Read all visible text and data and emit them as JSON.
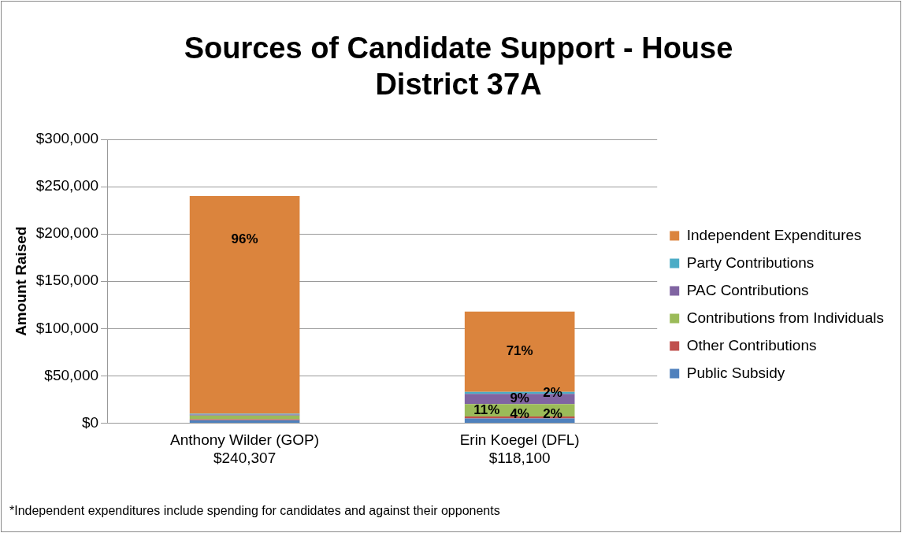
{
  "chart_data": {
    "type": "bar",
    "stacked": true,
    "title": "Sources of Candidate Support - House District 37A",
    "categories": [
      "Anthony Wilder (GOP)\n$240,307",
      "Erin Koegel (DFL)\n$118,100"
    ],
    "ylabel": "Amount Raised",
    "ylim": [
      0,
      300000
    ],
    "yticks": [
      {
        "value": 0,
        "label": "$0"
      },
      {
        "value": 50000,
        "label": "$50,000"
      },
      {
        "value": 100000,
        "label": "$100,000"
      },
      {
        "value": 150000,
        "label": "$150,000"
      },
      {
        "value": 200000,
        "label": "$200,000"
      },
      {
        "value": 250000,
        "label": "$250,000"
      },
      {
        "value": 300000,
        "label": "$300,000"
      }
    ],
    "grid": "y",
    "legend": "right",
    "series": [
      {
        "name": "Public Subsidy",
        "color": "#4f81bd",
        "values": [
          3000,
          5000
        ]
      },
      {
        "name": "Other Contributions",
        "color": "#c0504d",
        "values": [
          1000,
          2000
        ]
      },
      {
        "name": "Contributions from Individuals",
        "color": "#9bbb59",
        "values": [
          4000,
          13000
        ]
      },
      {
        "name": "PAC Contributions",
        "color": "#8064a2",
        "values": [
          1000,
          11000
        ]
      },
      {
        "name": "Party Contributions",
        "color": "#4bacc6",
        "values": [
          1000,
          2000
        ]
      },
      {
        "name": "Independent Expenditures",
        "color": "#db843d",
        "values": [
          230000,
          85000
        ]
      }
    ],
    "annotations": [
      {
        "text": "96%",
        "x": "Anthony Wilder (GOP)\n$240,307",
        "y": 240000
      },
      {
        "text": "71%",
        "x": "Erin Koegel (DFL)\n$118,100",
        "y": 118000
      },
      {
        "text": "4%",
        "x": "Erin Koegel (DFL)\n$118,100",
        "y": 5000
      },
      {
        "text": "2%",
        "x": "Erin Koegel (DFL)\n$118,100",
        "y": 7000
      },
      {
        "text": "11%",
        "x": "Erin Koegel (DFL)\n$118,100",
        "y": 20000
      },
      {
        "text": "9%",
        "x": "Erin Koegel (DFL)\n$118,100",
        "y": 31000
      },
      {
        "text": "2%",
        "x": "Erin Koegel (DFL)\n$118,100",
        "y": 33000
      },
      "*Independent expenditures include spending for candidates and against their opponents"
    ]
  }
}
